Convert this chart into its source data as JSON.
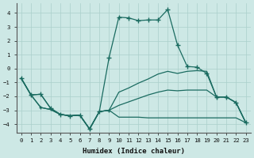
{
  "xlabel": "Humidex (Indice chaleur)",
  "bg_color": "#cde8e5",
  "grid_color": "#aacfcb",
  "line_color": "#1a6b60",
  "xlim": [
    -0.5,
    23.5
  ],
  "ylim": [
    -4.6,
    4.7
  ],
  "xticks": [
    0,
    1,
    2,
    3,
    4,
    5,
    6,
    7,
    8,
    9,
    10,
    11,
    12,
    13,
    14,
    15,
    16,
    17,
    18,
    19,
    20,
    21,
    22,
    23
  ],
  "yticks": [
    -4,
    -3,
    -2,
    -1,
    0,
    1,
    2,
    3,
    4
  ],
  "line_a_x": [
    0,
    1,
    2,
    3,
    4,
    5,
    6,
    7,
    8,
    9,
    10,
    11,
    12,
    13,
    14,
    15,
    16,
    17,
    18,
    19,
    20,
    21,
    22,
    23
  ],
  "line_a_y": [
    -0.7,
    -1.9,
    -1.85,
    -2.85,
    -3.3,
    -3.4,
    -3.35,
    -4.35,
    -3.1,
    0.8,
    3.7,
    3.65,
    3.45,
    3.5,
    3.5,
    4.25,
    1.7,
    0.15,
    0.1,
    -0.35,
    -2.05,
    -2.05,
    -2.45,
    -3.9
  ],
  "line_a_markers": [
    0,
    1,
    2,
    3,
    4,
    5,
    6,
    7,
    8,
    9,
    10,
    11,
    12,
    13,
    14,
    15,
    16,
    17,
    18,
    19,
    20,
    21,
    22,
    23
  ],
  "line_b_x": [
    0,
    1,
    2,
    3,
    4,
    5,
    6,
    7,
    8,
    9,
    10,
    11,
    12,
    13,
    14,
    15,
    16,
    17,
    18,
    19,
    20,
    21,
    22,
    23
  ],
  "line_b_y": [
    -0.7,
    -1.9,
    -2.8,
    -2.95,
    -3.3,
    -3.4,
    -3.35,
    -4.35,
    -3.1,
    -3.0,
    -1.7,
    -1.4,
    -1.05,
    -0.75,
    -0.4,
    -0.2,
    -0.35,
    -0.2,
    -0.15,
    -0.2,
    -2.05,
    -2.05,
    -2.45,
    -3.9
  ],
  "line_b_markers": [
    1,
    2,
    7,
    9,
    20,
    21
  ],
  "line_c_x": [
    0,
    1,
    2,
    3,
    4,
    5,
    6,
    7,
    8,
    9,
    10,
    11,
    12,
    13,
    14,
    15,
    16,
    17,
    18,
    19,
    20,
    21,
    22,
    23
  ],
  "line_c_y": [
    -0.7,
    -1.9,
    -2.8,
    -2.95,
    -3.3,
    -3.4,
    -3.35,
    -4.35,
    -3.1,
    -3.0,
    -2.65,
    -2.4,
    -2.15,
    -1.9,
    -1.7,
    -1.55,
    -1.6,
    -1.55,
    -1.55,
    -1.55,
    -2.05,
    -2.05,
    -2.45,
    -3.9
  ],
  "line_c_markers": [],
  "line_d_x": [
    0,
    1,
    2,
    3,
    4,
    5,
    6,
    7,
    8,
    9,
    10,
    11,
    12,
    13,
    14,
    15,
    16,
    17,
    18,
    19,
    20,
    21,
    22,
    23
  ],
  "line_d_y": [
    -0.7,
    -1.9,
    -1.85,
    -2.85,
    -3.3,
    -3.4,
    -3.35,
    -4.35,
    -3.1,
    -3.0,
    -3.5,
    -3.5,
    -3.5,
    -3.55,
    -3.55,
    -3.55,
    -3.55,
    -3.55,
    -3.55,
    -3.55,
    -3.55,
    -3.55,
    -3.55,
    -3.9
  ],
  "line_d_markers": []
}
